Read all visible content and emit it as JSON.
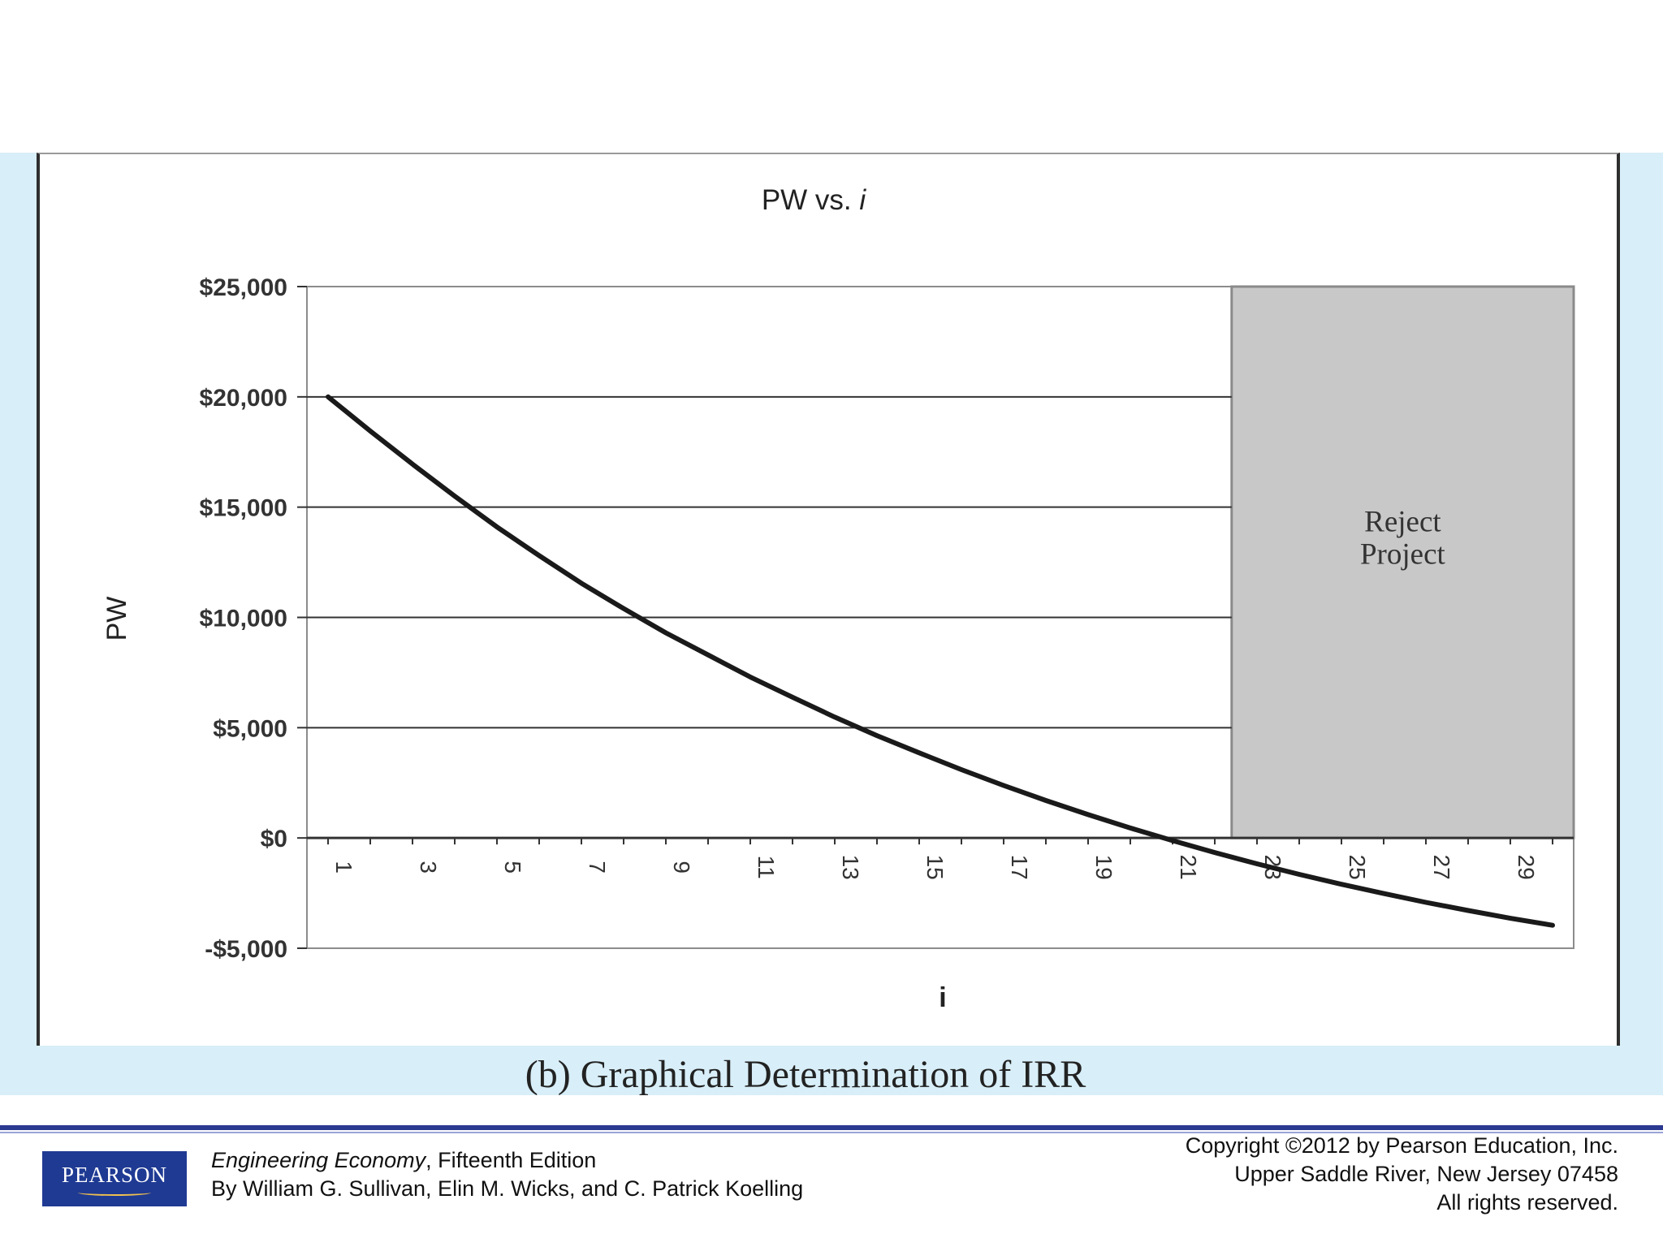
{
  "caption": "(b) Graphical Determination of IRR",
  "footer": {
    "book_title": "Engineering Economy",
    "book_edition": ", Fifteenth Edition",
    "authors": "By William G. Sullivan, Elin M. Wicks, and C. Patrick Koelling",
    "copyright_line1": "Copyright ©2012 by Pearson Education, Inc.",
    "copyright_line2": "Upper Saddle River, New Jersey 07458",
    "copyright_line3": "All rights reserved.",
    "logo_text": "PEARSON"
  },
  "colors": {
    "band": "#d8eef8",
    "reject_region": "#c8c8c8",
    "line": "#1a1a1a",
    "logo": "#1f3a93",
    "rule": "#2b3990"
  },
  "chart_data": {
    "type": "line",
    "title_main": "PW vs. ",
    "title_italic": "i",
    "xlabel": "i",
    "ylabel": "PW",
    "ylim": [
      -5000,
      25000
    ],
    "xlim": [
      0.5,
      30.5
    ],
    "ytick_values": [
      -5000,
      0,
      5000,
      10000,
      15000,
      20000,
      25000
    ],
    "ytick_labels": [
      "-$5,000",
      "$0",
      "$5,000",
      "$10,000",
      "$15,000",
      "$20,000",
      "$25,000"
    ],
    "xtick_values": [
      1,
      3,
      5,
      7,
      9,
      11,
      13,
      15,
      17,
      19,
      21,
      23,
      25,
      27,
      29
    ],
    "xtick_labels": [
      "1",
      "3",
      "5",
      "7",
      "9",
      "11",
      "13",
      "15",
      "17",
      "19",
      "21",
      "23",
      "25",
      "27",
      "29"
    ],
    "grid": true,
    "region": {
      "label_line1": "Reject",
      "label_line2": "Project",
      "x_start": 22.4,
      "x_end": 30.5
    },
    "series": [
      {
        "x": [
          1,
          2,
          3,
          4,
          5,
          6,
          7,
          8,
          9,
          10,
          11,
          12,
          13,
          14,
          15,
          16,
          17,
          18,
          19,
          20,
          21,
          22,
          23,
          24,
          25,
          26,
          27,
          28,
          29,
          30
        ],
        "values": [
          20000,
          18450,
          16950,
          15500,
          14100,
          12800,
          11550,
          10400,
          9300,
          8300,
          7300,
          6380,
          5480,
          4640,
          3860,
          3100,
          2380,
          1700,
          1060,
          450,
          -120,
          -660,
          -1170,
          -1650,
          -2100,
          -2520,
          -2920,
          -3290,
          -3640,
          -3960
        ]
      }
    ]
  }
}
